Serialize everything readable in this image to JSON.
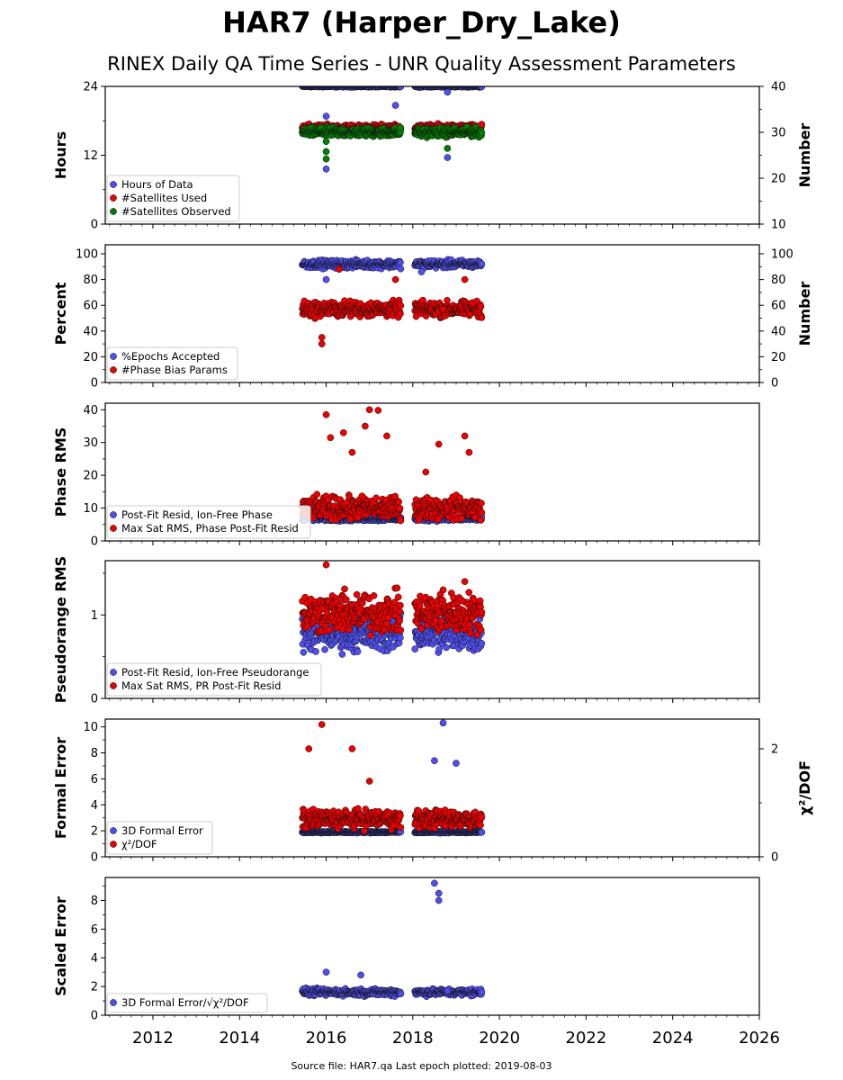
{
  "title": "HAR7 (Harper_Dry_Lake)",
  "subtitle": "RINEX Daily QA Time Series - UNR Quality Assessment Parameters",
  "footer": "Source file: HAR7.qa Last epoch plotted: 2019-08-03",
  "colors": {
    "blue": "#4f4ff0",
    "red": "#ee0000",
    "green": "#007f00"
  },
  "chart_data": {
    "type": "scatter",
    "xlim": [
      2010.9,
      2026.0
    ],
    "xticks": [
      2012,
      2014,
      2016,
      2018,
      2020,
      2022,
      2024,
      2026
    ],
    "xtick_labels": [
      "2012",
      "2014",
      "2016",
      "2018",
      "2020",
      "2022",
      "2024",
      "2026"
    ],
    "segments": [
      [
        2015.45,
        2017.72
      ],
      [
        2018.05,
        2019.59
      ]
    ],
    "panels": [
      {
        "ylabel": "Hours",
        "ylabel_right": "Number",
        "ylim": [
          0,
          24
        ],
        "yticks": [
          0,
          12,
          24
        ],
        "ylim_right": [
          10,
          40
        ],
        "yticks_right": [
          10,
          20,
          30,
          40
        ],
        "legend": [
          "Hours of Data",
          "#Satellites Used",
          "#Satellites Observed"
        ],
        "series": [
          {
            "name": "Hours of Data",
            "color": "blue",
            "axis": "left",
            "level": 24.0,
            "spread": 0.1,
            "outliers": [
              [
                2016.0,
                18.8
              ],
              [
                2016.0,
                9.6
              ],
              [
                2017.6,
                20.7
              ],
              [
                2018.8,
                11.6
              ],
              [
                2018.8,
                23.0
              ]
            ]
          },
          {
            "name": "#Satellites Used",
            "color": "red",
            "axis": "right",
            "level": 31.0,
            "spread": 0.6,
            "outliers": [
              [
                2018.8,
                29.0
              ]
            ]
          },
          {
            "name": "#Satellites Observed",
            "color": "green",
            "axis": "right",
            "level": 30.0,
            "spread": 0.8,
            "outliers": [
              [
                2016.0,
                25.8
              ],
              [
                2016.0,
                24.2
              ],
              [
                2016.0,
                28.0
              ],
              [
                2018.8,
                26.5
              ]
            ]
          }
        ]
      },
      {
        "ylabel": "Percent",
        "ylabel_right": "Number",
        "ylim": [
          0,
          107
        ],
        "yticks": [
          0,
          20,
          40,
          60,
          80,
          100
        ],
        "ylim_right": [
          0,
          107
        ],
        "yticks_right": [
          0,
          20,
          40,
          60,
          80,
          100
        ],
        "legend": [
          "%Epochs Accepted",
          "#Phase Bias Params"
        ],
        "series": [
          {
            "name": "%Epochs Accepted",
            "color": "blue",
            "axis": "left",
            "level": 92,
            "spread": 2.5,
            "outliers": [
              [
                2016.0,
                80
              ],
              [
                2018.2,
                86
              ]
            ]
          },
          {
            "name": "#Phase Bias Params",
            "color": "red",
            "axis": "right",
            "level": 57,
            "spread": 5,
            "outliers": [
              [
                2015.9,
                30
              ],
              [
                2015.9,
                35
              ],
              [
                2016.3,
                88
              ],
              [
                2017.6,
                80
              ],
              [
                2018.7,
                57
              ],
              [
                2019.2,
                80
              ]
            ]
          }
        ]
      },
      {
        "ylabel": "Phase RMS",
        "ylim": [
          0,
          42
        ],
        "yticks": [
          0,
          10,
          20,
          30,
          40
        ],
        "legend": [
          "Post-Fit Resid, Ion-Free Phase",
          "Max Sat RMS, Phase Post-Fit Resid"
        ],
        "series": [
          {
            "name": "Post-Fit Resid, Ion-Free Phase",
            "color": "blue",
            "axis": "left",
            "level": 6.8,
            "spread": 0.6,
            "outliers": []
          },
          {
            "name": "Max Sat RMS, Phase Post-Fit Resid",
            "color": "red",
            "axis": "left",
            "level": 10,
            "spread": 2.8,
            "outliers": [
              [
                2016.0,
                38.5
              ],
              [
                2016.1,
                31.5
              ],
              [
                2016.4,
                33
              ],
              [
                2016.6,
                27
              ],
              [
                2016.9,
                35
              ],
              [
                2017.0,
                40
              ],
              [
                2017.2,
                39.8
              ],
              [
                2017.4,
                32
              ],
              [
                2018.3,
                21
              ],
              [
                2018.6,
                29.5
              ],
              [
                2019.2,
                32
              ],
              [
                2019.3,
                27
              ]
            ]
          }
        ]
      },
      {
        "ylabel": "Pseudorange RMS",
        "ylim": [
          0,
          1.65
        ],
        "yticks": [
          0,
          1
        ],
        "legend": [
          "Post-Fit Resid, Ion-Free Pseudorange",
          "Max Sat RMS, PR Post-Fit Resid"
        ],
        "series": [
          {
            "name": "Post-Fit Resid, Ion-Free Pseudorange",
            "color": "blue",
            "axis": "left",
            "level": 0.78,
            "spread": 0.18,
            "outliers": [
              [
                2018.3,
                0.97
              ],
              [
                2018.5,
                0.96
              ],
              [
                2018.7,
                0.95
              ]
            ]
          },
          {
            "name": "Max Sat RMS, PR Post-Fit Resid",
            "color": "red",
            "axis": "left",
            "level": 1.02,
            "spread": 0.2,
            "outliers": [
              [
                2016.0,
                1.6
              ],
              [
                2018.7,
                1.3
              ],
              [
                2019.2,
                1.4
              ]
            ]
          }
        ]
      },
      {
        "ylabel": "Formal Error",
        "ylabel_right": "χ²/DOF",
        "ylim": [
          0,
          10.6
        ],
        "yticks": [
          0,
          2,
          4,
          6,
          8,
          10
        ],
        "ylim_right": [
          0,
          2.55
        ],
        "yticks_right": [
          0,
          2
        ],
        "legend": [
          "3D Formal Error",
          "χ²/DOF"
        ],
        "series": [
          {
            "name": "3D Formal Error",
            "color": "blue",
            "axis": "left",
            "level": 1.9,
            "spread": 0.05,
            "outliers": [
              [
                2018.5,
                7.4
              ],
              [
                2018.7,
                10.3
              ],
              [
                2019.0,
                7.2
              ]
            ]
          },
          {
            "name": "χ²/DOF",
            "color": "red",
            "axis": "right",
            "level": 0.7,
            "spread": 0.14,
            "outliers": [
              [
                2015.9,
                2.45
              ],
              [
                2015.6,
                2.0
              ],
              [
                2016.6,
                2.0
              ],
              [
                2017.0,
                1.4
              ]
            ]
          }
        ]
      },
      {
        "ylabel": "Scaled Error",
        "ylim": [
          0,
          9.6
        ],
        "yticks": [
          0,
          2,
          4,
          6,
          8
        ],
        "legend": [
          "3D Formal Error/√χ²/DOF"
        ],
        "series": [
          {
            "name": "3D Formal Error/√χ²/DOF",
            "color": "blue",
            "axis": "left",
            "level": 1.6,
            "spread": 0.2,
            "outliers": [
              [
                2016.0,
                3.0
              ],
              [
                2016.8,
                2.8
              ],
              [
                2018.5,
                9.2
              ],
              [
                2018.6,
                8.5
              ],
              [
                2018.6,
                8.0
              ],
              [
                2018.8,
                1.7
              ]
            ]
          }
        ]
      }
    ]
  }
}
